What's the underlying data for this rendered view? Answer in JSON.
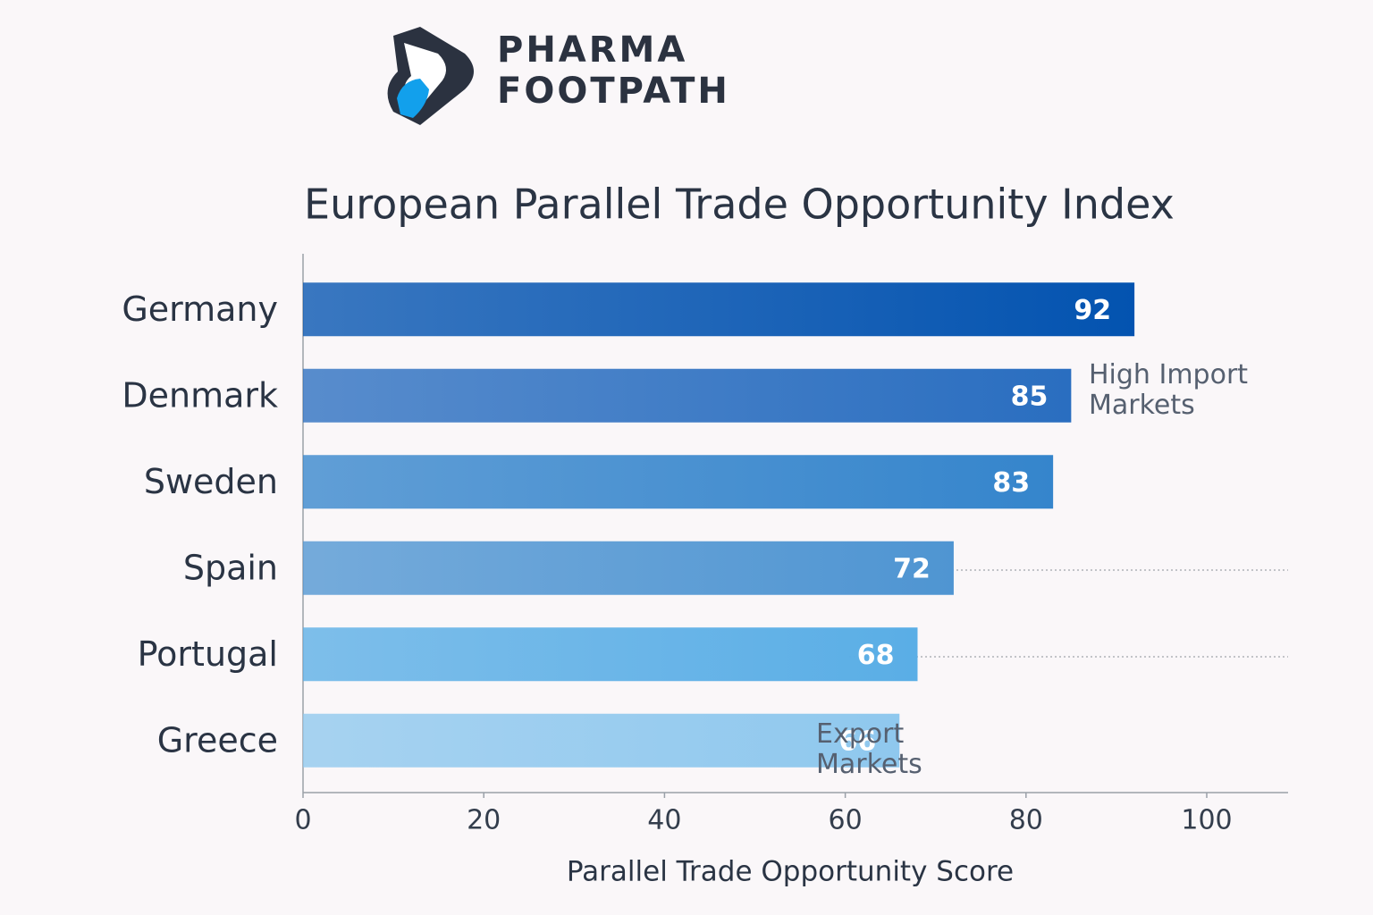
{
  "logo": {
    "line1": "PHARMA",
    "line2": "FOOTPATH"
  },
  "chart_data": {
    "type": "bar",
    "orientation": "horizontal",
    "title": "European Parallel Trade Opportunity Index",
    "x_label": "Parallel Trade Opportunity Score",
    "categories": [
      "Germany",
      "Denmark",
      "Sweden",
      "Spain",
      "Portugal",
      "Greece"
    ],
    "values": [
      92,
      85,
      83,
      72,
      68,
      66
    ],
    "colors": [
      "#0353b0",
      "#2a6ec0",
      "#3585cc",
      "#4f95d2",
      "#5aaee6",
      "#8fc8ee"
    ],
    "xlim": [
      0,
      109
    ],
    "xticks": [
      0,
      20,
      40,
      60,
      80,
      100
    ],
    "annotations": [
      "High Import\nMarkets",
      "Export\nMarkets"
    ]
  }
}
